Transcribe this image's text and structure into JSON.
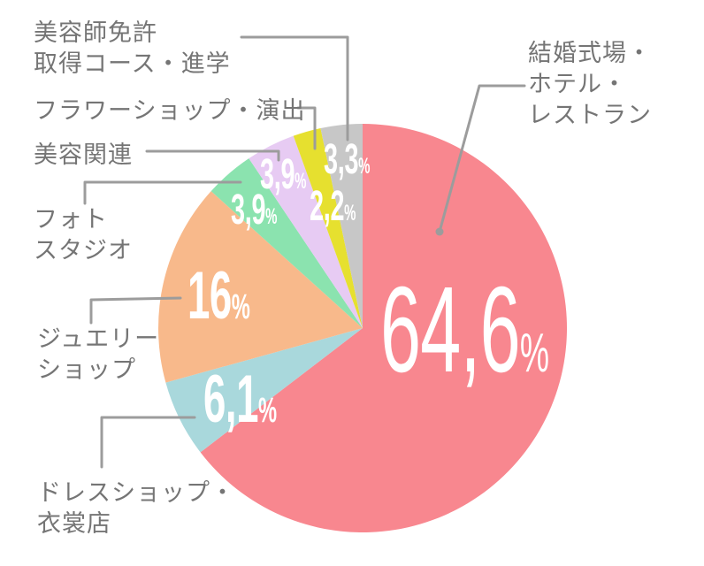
{
  "chart_data": {
    "type": "pie",
    "title": "",
    "unit": "%",
    "start_angle": "top",
    "direction": "clockwise",
    "legend_position": "callouts-around-pie",
    "slices": [
      {
        "key": "wedding",
        "label": "結婚式場・ホテル・レストラン",
        "value": 64.6,
        "display_value": "64,6%",
        "color": "#F8878F"
      },
      {
        "key": "dress",
        "label": "ドレスショップ・衣裳店",
        "value": 6.1,
        "display_value": "6,1%",
        "color": "#A9D8DC"
      },
      {
        "key": "jewelry",
        "label": "ジュエリーショップ",
        "value": 16,
        "display_value": "16%",
        "color": "#F8B98B"
      },
      {
        "key": "photo",
        "label": "フォトスタジオ",
        "value": 3.9,
        "display_value": "3,9%",
        "color": "#8BE3AF"
      },
      {
        "key": "beauty",
        "label": "美容関連",
        "value": 3.9,
        "display_value": "3,9%",
        "color": "#E7CBF3"
      },
      {
        "key": "flower",
        "label": "フラワーショップ・演出",
        "value": 2.2,
        "display_value": "2,2%",
        "color": "#E6E02F"
      },
      {
        "key": "license",
        "label": "美容師免許取得コース・進学",
        "value": 3.3,
        "display_value": "3,3%",
        "color": "#C7C7C7"
      }
    ]
  },
  "callouts": {
    "license": {
      "lines": [
        "美容師免許",
        "取得コース・進学"
      ]
    },
    "flower": {
      "lines": [
        "フラワーショップ・演出"
      ]
    },
    "beauty": {
      "lines": [
        "美容関連"
      ]
    },
    "photo": {
      "lines": [
        "フォト",
        "スタジオ"
      ]
    },
    "jewelry": {
      "lines": [
        "ジュエリー",
        "ショップ"
      ]
    },
    "dress": {
      "lines": [
        "ドレスショップ・",
        "衣裳店"
      ]
    },
    "wedding": {
      "lines": [
        "結婚式場・",
        "ホテル・",
        "レストラン"
      ]
    }
  },
  "colors": {
    "background": "#FFFFFF",
    "label_text": "#757575",
    "leader_line": "#9C9C9C",
    "value_text": "#FFFFFF"
  }
}
